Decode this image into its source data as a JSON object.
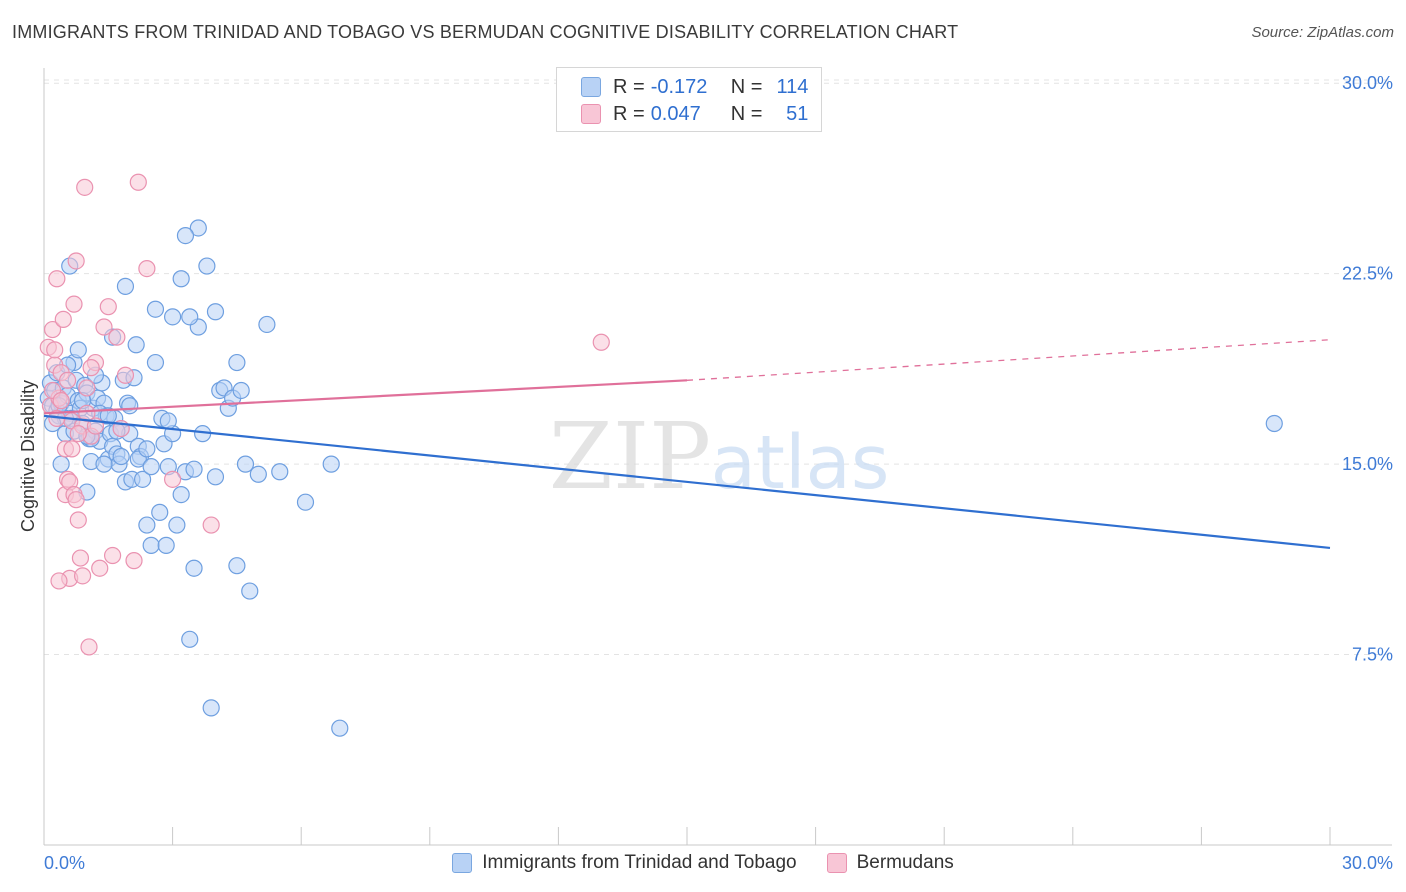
{
  "title": "IMMIGRANTS FROM TRINIDAD AND TOBAGO VS BERMUDAN COGNITIVE DISABILITY CORRELATION CHART",
  "source": "Source: ZipAtlas.com",
  "watermark": {
    "zip": "ZIP",
    "atlas": "atlas"
  },
  "legend": {
    "r_label": "R =",
    "n_label": "N =",
    "series": [
      {
        "r": "-0.172",
        "n": "114"
      },
      {
        "r": "0.047",
        "n": "51"
      }
    ]
  },
  "bottom_legend": [
    "Immigrants from Trinidad and Tobago",
    "Bermudans"
  ],
  "colors": {
    "blue_fill": "#b8d2f5",
    "blue_stroke": "#6e9fe0",
    "blue_line": "#2f6fd0",
    "pink_fill": "#f8c6d6",
    "pink_stroke": "#ea92b0",
    "pink_line": "#e0709a",
    "tick_text": "#3f7bd6",
    "grid": "#e3e3e3"
  },
  "chart_data": {
    "type": "scatter",
    "title": "IMMIGRANTS FROM TRINIDAD AND TOBAGO VS BERMUDAN COGNITIVE DISABILITY CORRELATION CHART",
    "xlabel": "",
    "ylabel": "Cognitive Disability",
    "xlim": [
      0,
      30
    ],
    "ylim": [
      0,
      30.6
    ],
    "x_tick_labels": [
      "0.0%",
      "30.0%"
    ],
    "y_ticks": [
      7.5,
      15.0,
      22.5,
      30.0
    ],
    "y_tick_labels": [
      "7.5%",
      "15.0%",
      "22.5%",
      "30.0%"
    ],
    "grid": true,
    "legend_position": "top-center",
    "series": [
      {
        "name": "Immigrants from Trinidad and Tobago",
        "color": "#6e9fe0",
        "trend": {
          "x": [
            0,
            30
          ],
          "y": [
            16.9,
            11.7
          ],
          "dashed_from": null
        },
        "points": [
          [
            0.1,
            17.6
          ],
          [
            0.15,
            18.2
          ],
          [
            0.2,
            17.3
          ],
          [
            0.25,
            17.9
          ],
          [
            0.3,
            17.1
          ],
          [
            0.35,
            16.9
          ],
          [
            0.4,
            17.4
          ],
          [
            0.45,
            18.0
          ],
          [
            0.5,
            16.2
          ],
          [
            0.55,
            17.7
          ],
          [
            0.6,
            17.0
          ],
          [
            0.65,
            16.8
          ],
          [
            0.7,
            19.0
          ],
          [
            0.75,
            18.3
          ],
          [
            0.8,
            17.5
          ],
          [
            0.85,
            17.2
          ],
          [
            0.9,
            16.6
          ],
          [
            0.95,
            18.1
          ],
          [
            1.0,
            17.8
          ],
          [
            1.05,
            16.0
          ],
          [
            1.1,
            15.1
          ],
          [
            1.15,
            17.2
          ],
          [
            1.2,
            16.3
          ],
          [
            1.25,
            17.6
          ],
          [
            1.3,
            15.9
          ],
          [
            1.35,
            18.2
          ],
          [
            1.4,
            17.4
          ],
          [
            1.45,
            16.9
          ],
          [
            1.5,
            15.2
          ],
          [
            1.55,
            16.2
          ],
          [
            1.6,
            15.7
          ],
          [
            1.65,
            16.8
          ],
          [
            1.7,
            15.4
          ],
          [
            1.75,
            15.0
          ],
          [
            1.8,
            16.4
          ],
          [
            1.85,
            18.3
          ],
          [
            1.9,
            14.3
          ],
          [
            1.95,
            17.4
          ],
          [
            2.0,
            16.2
          ],
          [
            2.05,
            14.4
          ],
          [
            2.1,
            18.4
          ],
          [
            2.15,
            19.7
          ],
          [
            2.2,
            15.7
          ],
          [
            2.25,
            15.3
          ],
          [
            2.3,
            14.4
          ],
          [
            2.4,
            12.6
          ],
          [
            2.5,
            11.8
          ],
          [
            2.6,
            19.0
          ],
          [
            2.7,
            13.1
          ],
          [
            2.75,
            16.8
          ],
          [
            2.8,
            15.8
          ],
          [
            2.85,
            11.8
          ],
          [
            2.9,
            14.9
          ],
          [
            3.0,
            16.2
          ],
          [
            3.1,
            12.6
          ],
          [
            3.2,
            13.8
          ],
          [
            3.3,
            14.7
          ],
          [
            3.4,
            8.1
          ],
          [
            3.5,
            14.8
          ],
          [
            3.6,
            20.4
          ],
          [
            3.7,
            16.2
          ],
          [
            3.8,
            22.8
          ],
          [
            3.9,
            5.4
          ],
          [
            4.0,
            14.5
          ],
          [
            4.1,
            17.9
          ],
          [
            4.2,
            18.0
          ],
          [
            4.3,
            17.2
          ],
          [
            4.4,
            17.6
          ],
          [
            4.5,
            11.0
          ],
          [
            4.6,
            17.9
          ],
          [
            4.7,
            15.0
          ],
          [
            4.8,
            10.0
          ],
          [
            5.0,
            14.6
          ],
          [
            5.2,
            20.5
          ],
          [
            5.5,
            14.7
          ],
          [
            6.1,
            13.5
          ],
          [
            6.7,
            15.0
          ],
          [
            6.9,
            4.6
          ],
          [
            0.4,
            15.0
          ],
          [
            0.6,
            22.8
          ],
          [
            0.7,
            16.3
          ],
          [
            1.0,
            13.9
          ],
          [
            1.4,
            15.0
          ],
          [
            1.9,
            22.0
          ],
          [
            2.0,
            17.3
          ],
          [
            2.6,
            21.1
          ],
          [
            3.0,
            20.8
          ],
          [
            3.2,
            22.3
          ],
          [
            3.5,
            10.9
          ],
          [
            3.6,
            24.3
          ],
          [
            0.3,
            18.6
          ],
          [
            0.5,
            16.8
          ],
          [
            0.8,
            19.5
          ],
          [
            1.1,
            16.0
          ],
          [
            1.3,
            17.0
          ],
          [
            1.6,
            20.0
          ],
          [
            1.7,
            16.3
          ],
          [
            2.2,
            15.2
          ],
          [
            2.5,
            14.9
          ],
          [
            3.3,
            24.0
          ],
          [
            4.5,
            19.0
          ],
          [
            0.2,
            16.6
          ],
          [
            0.9,
            17.5
          ],
          [
            1.2,
            18.5
          ],
          [
            1.5,
            16.9
          ],
          [
            1.8,
            15.3
          ],
          [
            2.4,
            15.6
          ],
          [
            2.9,
            16.7
          ],
          [
            3.4,
            20.8
          ],
          [
            4.0,
            21.0
          ],
          [
            28.7,
            16.6
          ],
          [
            0.55,
            18.9
          ],
          [
            1.0,
            16.1
          ],
          [
            0.35,
            17.3
          ]
        ]
      },
      {
        "name": "Bermudans",
        "color": "#ea92b0",
        "trend": {
          "x": [
            0,
            15
          ],
          "y": [
            17.0,
            18.3
          ],
          "dashed_from": 15,
          "dash_to": [
            30,
            19.9
          ]
        },
        "points": [
          [
            0.1,
            19.6
          ],
          [
            0.15,
            17.3
          ],
          [
            0.2,
            20.3
          ],
          [
            0.25,
            18.9
          ],
          [
            0.3,
            22.3
          ],
          [
            0.35,
            17.6
          ],
          [
            0.4,
            18.6
          ],
          [
            0.45,
            20.7
          ],
          [
            0.5,
            13.8
          ],
          [
            0.55,
            14.4
          ],
          [
            0.6,
            10.5
          ],
          [
            0.65,
            16.7
          ],
          [
            0.7,
            21.3
          ],
          [
            0.75,
            23.0
          ],
          [
            0.8,
            12.8
          ],
          [
            0.85,
            11.3
          ],
          [
            0.9,
            16.5
          ],
          [
            0.95,
            25.9
          ],
          [
            1.0,
            18.0
          ],
          [
            1.05,
            7.8
          ],
          [
            1.1,
            16.1
          ],
          [
            1.2,
            19.0
          ],
          [
            1.3,
            10.9
          ],
          [
            1.4,
            20.4
          ],
          [
            1.5,
            21.2
          ],
          [
            1.6,
            11.4
          ],
          [
            1.7,
            20.0
          ],
          [
            1.8,
            16.4
          ],
          [
            1.9,
            18.5
          ],
          [
            2.1,
            11.2
          ],
          [
            2.2,
            26.1
          ],
          [
            2.4,
            22.7
          ],
          [
            3.0,
            14.4
          ],
          [
            3.9,
            12.6
          ],
          [
            13.0,
            19.8
          ],
          [
            0.2,
            17.9
          ],
          [
            0.3,
            16.8
          ],
          [
            0.5,
            15.6
          ],
          [
            0.6,
            14.3
          ],
          [
            0.7,
            13.8
          ],
          [
            0.8,
            16.2
          ],
          [
            0.9,
            10.6
          ],
          [
            1.0,
            17.0
          ],
          [
            1.2,
            16.5
          ],
          [
            0.4,
            17.5
          ],
          [
            0.25,
            19.5
          ],
          [
            0.35,
            10.4
          ],
          [
            0.55,
            18.3
          ],
          [
            0.65,
            15.6
          ],
          [
            0.75,
            13.6
          ],
          [
            1.1,
            18.8
          ]
        ]
      }
    ]
  }
}
